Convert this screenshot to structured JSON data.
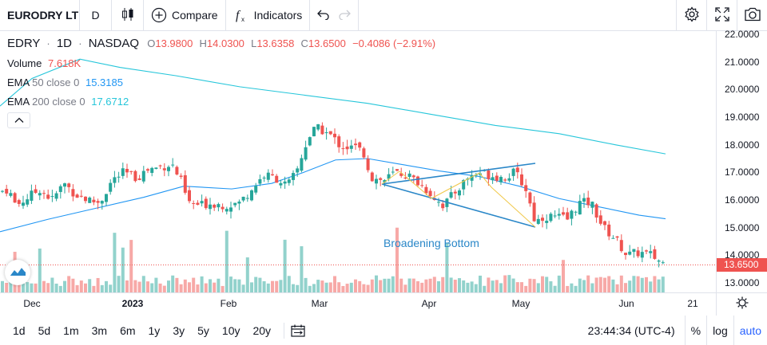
{
  "toolbar": {
    "symbol": "EURODRY LT",
    "resolution": "D",
    "compare_label": "Compare",
    "indicators_label": "Indicators"
  },
  "legend": {
    "ticker": "EDRY",
    "interval": "1D",
    "exchange": "NASDAQ",
    "open_label": "O",
    "open": "13.9800",
    "high_label": "H",
    "high": "14.0300",
    "low_label": "L",
    "low": "13.6358",
    "close_label": "C",
    "close": "13.6500",
    "change": "−0.4086 (−2.91%)",
    "volume_label": "Volume",
    "volume": "7.618K",
    "ema50_label": "EMA",
    "ema50_params": "50 close 0",
    "ema50_value": "15.3185",
    "ema200_label": "EMA",
    "ema200_params": "200 close 0",
    "ema200_value": "17.6712"
  },
  "price_axis": {
    "ticks": [
      "22.0000",
      "21.0000",
      "20.0000",
      "19.0000",
      "18.0000",
      "17.0000",
      "16.0000",
      "15.0000",
      "14.0000",
      "13.0000"
    ],
    "last_price": "13.6500"
  },
  "time_axis": {
    "ticks": [
      {
        "label": "Dec",
        "bold": false
      },
      {
        "label": "2023",
        "bold": true
      },
      {
        "label": "Feb",
        "bold": false
      },
      {
        "label": "Mar",
        "bold": false
      },
      {
        "label": "Apr",
        "bold": false
      },
      {
        "label": "May",
        "bold": false
      },
      {
        "label": "Jun",
        "bold": false
      },
      {
        "label": "21",
        "bold": false
      }
    ]
  },
  "annotation": {
    "pattern_label": "Broadening Bottom"
  },
  "bottom_bar": {
    "ranges": [
      "1d",
      "5d",
      "1m",
      "3m",
      "6m",
      "1y",
      "3y",
      "5y",
      "10y",
      "20y"
    ],
    "clock": "23:44:34 (UTC-4)",
    "percent_label": "%",
    "log_label": "log",
    "auto_label": "auto"
  },
  "colors": {
    "up": "#26a69a",
    "down": "#ef5350",
    "ema50": "#2196f3",
    "ema200": "#26c6da",
    "accent": "#2962ff"
  },
  "chart_data": {
    "type": "candlestick",
    "price_range": [
      12.6,
      22.2
    ],
    "ema50_last": 15.3185,
    "ema200_last": 17.6712,
    "last_close": 13.65,
    "pattern": "Broadening Bottom"
  }
}
